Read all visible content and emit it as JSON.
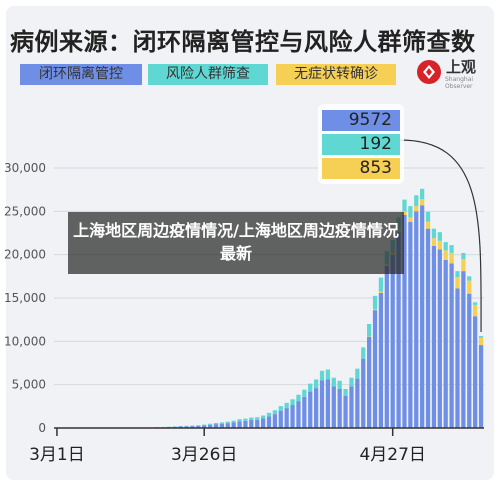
{
  "title": "病例来源：闭环隔离管控与风险人群筛查数",
  "logo": {
    "text": "上观",
    "sub": "Shanghai Observer"
  },
  "overlay_text": "上海地区周边疫情情况/上海地区周边疫情情况最新",
  "colors": {
    "closed_loop": "#6f8fe6",
    "risk_screening": "#5fd8d4",
    "asymptomatic": "#f6cf55",
    "background": "#f1f2f5"
  },
  "chart_data": {
    "type": "bar",
    "stacked": true,
    "title": "病例来源：闭环隔离管控与风险人群筛查数",
    "legend_position": "top",
    "series": [
      {
        "name": "闭环隔离管控",
        "values": [
          2,
          3,
          3,
          4,
          5,
          5,
          6,
          6,
          7,
          8,
          10,
          12,
          15,
          20,
          30,
          40,
          60,
          80,
          100,
          120,
          150,
          180,
          200,
          220,
          250,
          300,
          380,
          450,
          500,
          560,
          650,
          780,
          830,
          920,
          950,
          1100,
          1350,
          1600,
          2000,
          2300,
          2650,
          3100,
          3600,
          4200,
          4600,
          5500,
          5600,
          4800,
          4500,
          3700,
          4800,
          5700,
          8000,
          10500,
          13600,
          15600,
          18700,
          20000,
          22600,
          24600,
          23800,
          25000,
          25700,
          23000,
          21000,
          20600,
          19400,
          19000,
          16100,
          18100,
          15500,
          12900,
          9572
        ]
      },
      {
        "name": "风险人群筛查",
        "values": [
          1,
          1,
          1,
          1,
          1,
          1,
          1,
          2,
          2,
          2,
          2,
          3,
          3,
          4,
          6,
          8,
          12,
          16,
          20,
          25,
          30,
          40,
          50,
          60,
          70,
          90,
          110,
          130,
          150,
          170,
          200,
          240,
          260,
          290,
          300,
          340,
          400,
          450,
          520,
          600,
          660,
          740,
          830,
          920,
          1000,
          1100,
          1150,
          1000,
          950,
          800,
          1000,
          1150,
          1300,
          1450,
          1550,
          1600,
          1500,
          1450,
          1400,
          1350,
          1300,
          1250,
          1200,
          1150,
          1100,
          1000,
          950,
          900,
          700,
          700,
          500,
          300,
          192
        ]
      },
      {
        "name": "无症状转确诊",
        "values": [
          0,
          0,
          0,
          0,
          0,
          0,
          0,
          0,
          0,
          0,
          0,
          0,
          0,
          0,
          0,
          0,
          0,
          0,
          0,
          0,
          0,
          0,
          0,
          0,
          0,
          0,
          0,
          0,
          0,
          0,
          0,
          0,
          0,
          0,
          0,
          0,
          0,
          0,
          0,
          0,
          0,
          0,
          0,
          0,
          0,
          0,
          0,
          0,
          0,
          0,
          0,
          0,
          0,
          50,
          100,
          150,
          200,
          250,
          300,
          400,
          500,
          600,
          700,
          800,
          900,
          1000,
          1100,
          1200,
          1300,
          1400,
          1500,
          1300,
          853
        ]
      }
    ],
    "x_labels": [
      {
        "index": 0,
        "label": "3月1日"
      },
      {
        "index": 25,
        "label": "3月26日"
      },
      {
        "index": 57,
        "label": "4月27日"
      }
    ],
    "y_ticks": [
      0,
      5000,
      10000,
      15000,
      20000,
      25000,
      30000
    ],
    "y_tick_labels": [
      "0",
      "5,000",
      "10,000",
      "15,000",
      "20,000",
      "25,000",
      "30,000"
    ],
    "ylim": [
      0,
      30000
    ],
    "grid": true,
    "annotation_values": [
      "9572",
      "192",
      "853"
    ]
  }
}
